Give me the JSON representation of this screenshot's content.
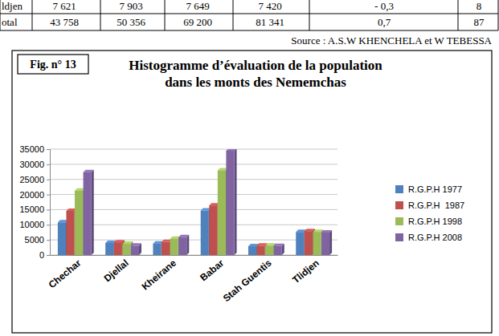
{
  "chart_data": {
    "type": "bar",
    "title": "Histogramme d’évaluation de la population dans les monts des Nememchas",
    "categories": [
      "Chechar",
      "Djellal",
      "Kheirane",
      "Babar",
      "Stah Guentis",
      "Tlidjen"
    ],
    "series": [
      {
        "name": "R.G.P.H 1977",
        "color": "#4f81bd",
        "values": [
          10800,
          4000,
          3800,
          14700,
          2900,
          7621
        ]
      },
      {
        "name": "R.G.P.H  1987",
        "color": "#c0504d",
        "values": [
          14600,
          4200,
          4300,
          16400,
          3100,
          7903
        ]
      },
      {
        "name": "R.G.P.H 1998",
        "color": "#9bbb59",
        "values": [
          21300,
          3700,
          5400,
          28000,
          3100,
          7649
        ]
      },
      {
        "name": "R.G.P.H 2008",
        "color": "#8064a2",
        "values": [
          27400,
          3100,
          5900,
          34500,
          3000,
          7420
        ]
      }
    ],
    "ylim": [
      0,
      35000
    ],
    "yticks": [
      0,
      5000,
      10000,
      15000,
      20000,
      25000,
      30000,
      35000
    ],
    "grid": true,
    "legend": "right"
  },
  "figure": {
    "label": "Fig. n° 13"
  },
  "table_fragment": {
    "rows": [
      [
        "ldjen",
        "7 621",
        "7 903",
        "7 649",
        "7 420",
        "- 0,3",
        "8"
      ],
      [
        "otal",
        "43 758",
        "50 356",
        "69 200",
        "81 341",
        "0,7",
        "87"
      ]
    ],
    "source": "Source : A.S.W KHENCHELA et W TEBESSA"
  }
}
